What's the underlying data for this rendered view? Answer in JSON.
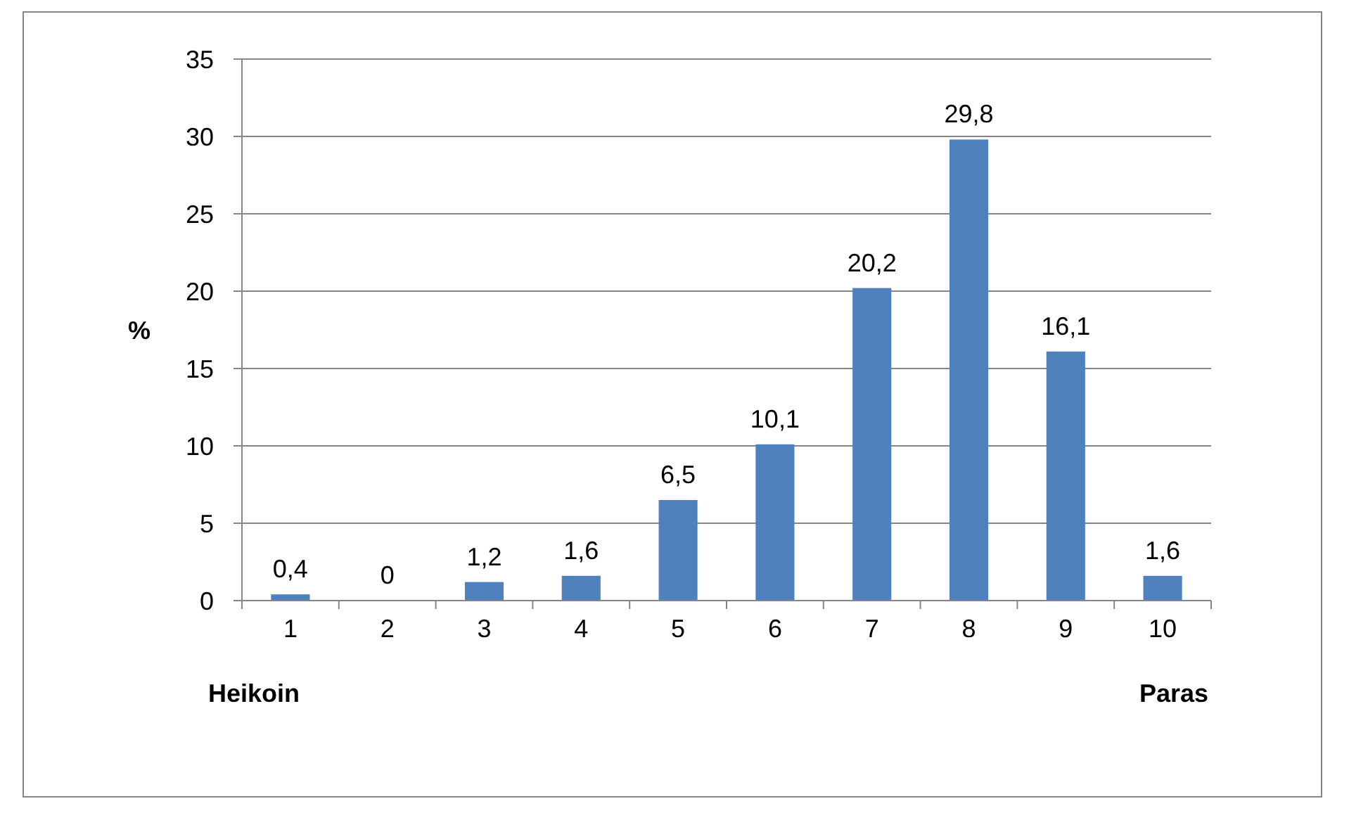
{
  "chart_data": {
    "type": "bar",
    "ylabel": "%",
    "categories": [
      "1",
      "2",
      "3",
      "4",
      "5",
      "6",
      "7",
      "8",
      "9",
      "10"
    ],
    "values": [
      0.4,
      0,
      1.2,
      1.6,
      6.5,
      10.1,
      20.2,
      29.8,
      16.1,
      1.6
    ],
    "value_labels": [
      "0,4",
      "0",
      "1,2",
      "1,6",
      "6,5",
      "10,1",
      "20,2",
      "29,8",
      "16,1",
      "1,6"
    ],
    "color": "#4f81bd",
    "ylim": [
      0,
      35
    ],
    "yticks": [
      0,
      5,
      10,
      15,
      20,
      25,
      30,
      35
    ],
    "grid": "y",
    "annotations": [
      "Heikoin",
      "Paras"
    ]
  }
}
